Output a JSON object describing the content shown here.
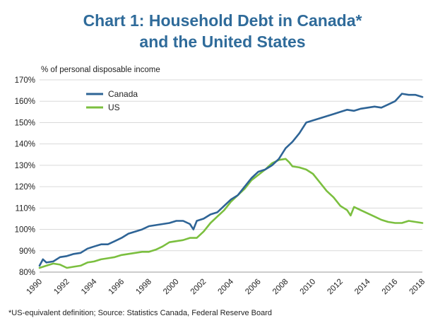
{
  "title_line1": "Chart 1: Household Debt in Canada*",
  "title_line2": "and the United States",
  "footnote": "*US-equivalent definition; Source: Statistics Canada, Federal Reserve Board",
  "colors": {
    "title": "#2f6b9a",
    "canada": "#2e6496",
    "us": "#7bbf3f"
  },
  "chart_data": {
    "type": "line",
    "ylabel": "% of personal disposable income",
    "xlabel": "",
    "ylim": [
      80,
      170
    ],
    "xlim": [
      1990,
      2018
    ],
    "yticks": [
      80,
      90,
      100,
      110,
      120,
      130,
      140,
      150,
      160,
      170
    ],
    "ytick_labels": [
      "80%",
      "90%",
      "100%",
      "110%",
      "120%",
      "130%",
      "140%",
      "150%",
      "160%",
      "170%"
    ],
    "xticks": [
      1990,
      1992,
      1994,
      1996,
      1998,
      2000,
      2002,
      2004,
      2006,
      2008,
      2010,
      2012,
      2014,
      2016,
      2018
    ],
    "grid": "horizontal",
    "legend_position": "top-left",
    "series": [
      {
        "name": "Canada",
        "x": [
          1990,
          1990.25,
          1990.5,
          1991,
          1991.5,
          1992,
          1992.5,
          1993,
          1993.5,
          1994,
          1994.5,
          1995,
          1995.5,
          1996,
          1996.5,
          1997,
          1997.5,
          1998,
          1998.5,
          1999,
          1999.5,
          2000,
          2000.5,
          2001,
          2001.25,
          2001.5,
          2002,
          2002.5,
          2003,
          2003.5,
          2004,
          2004.5,
          2005,
          2005.5,
          2006,
          2006.5,
          2007,
          2007.5,
          2008,
          2008.5,
          2009,
          2009.5,
          2010,
          2010.5,
          2011,
          2011.5,
          2012,
          2012.5,
          2013,
          2013.5,
          2014,
          2014.5,
          2015,
          2015.5,
          2016,
          2016.5,
          2017,
          2017.5,
          2018
        ],
        "values": [
          83,
          86,
          84.5,
          85,
          87,
          87.5,
          88.5,
          89,
          91,
          92,
          93,
          93,
          94.5,
          96,
          98,
          99,
          100,
          101.5,
          102,
          102.5,
          103,
          104,
          104,
          102.5,
          100,
          104,
          105,
          107,
          108,
          111,
          114,
          116,
          120,
          124,
          127,
          128,
          130,
          133,
          138,
          141,
          145,
          150,
          151,
          152,
          153,
          154,
          155,
          156,
          155.5,
          156.5,
          157,
          157.5,
          157,
          158.5,
          160,
          163.5,
          163,
          163,
          162
        ]
      },
      {
        "name": "US",
        "x": [
          1990,
          1990.5,
          1991,
          1991.5,
          1992,
          1992.5,
          1993,
          1993.5,
          1994,
          1994.5,
          1995,
          1995.5,
          1996,
          1996.5,
          1997,
          1997.5,
          1998,
          1998.5,
          1999,
          1999.5,
          2000,
          2000.5,
          2001,
          2001.5,
          2002,
          2002.5,
          2003,
          2003.5,
          2004,
          2004.5,
          2005,
          2005.5,
          2006,
          2006.5,
          2007,
          2007.5,
          2008,
          2008.25,
          2008.5,
          2009,
          2009.5,
          2010,
          2010.5,
          2011,
          2011.5,
          2012,
          2012.5,
          2012.75,
          2013,
          2013.5,
          2014,
          2014.5,
          2015,
          2015.5,
          2016,
          2016.5,
          2017,
          2017.5,
          2018
        ],
        "values": [
          82,
          83,
          84,
          83.5,
          82,
          82.5,
          83,
          84.5,
          85,
          86,
          86.5,
          87,
          88,
          88.5,
          89,
          89.5,
          89.5,
          90.5,
          92,
          94,
          94.5,
          95,
          96,
          96,
          99,
          103,
          106,
          109,
          113,
          116,
          119,
          123,
          125.5,
          128,
          131,
          132.5,
          133,
          131.5,
          129.5,
          129,
          128,
          126,
          122,
          118,
          115,
          111,
          109,
          106.5,
          110.5,
          109,
          107.5,
          106,
          104.5,
          103.5,
          103,
          103,
          104,
          103.5,
          103
        ]
      }
    ]
  }
}
